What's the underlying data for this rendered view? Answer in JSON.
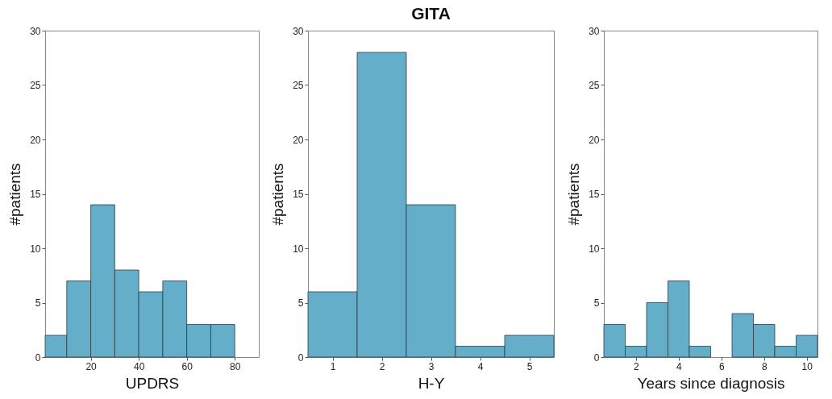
{
  "chart_data": [
    {
      "type": "histogram",
      "xlabel": "UPDRS",
      "ylabel": "#patients",
      "color": "#64aec9",
      "bins": [
        1,
        10,
        20,
        30,
        40,
        50,
        60,
        70,
        80
      ],
      "values": [
        2,
        7,
        14,
        8,
        6,
        7,
        3,
        3
      ],
      "xlim": [
        1,
        90
      ],
      "xticks": [
        20,
        40,
        60,
        80
      ],
      "ylim": [
        0,
        30
      ],
      "yticks": [
        0,
        5,
        10,
        15,
        20,
        25,
        30
      ]
    },
    {
      "type": "histogram",
      "title": "GITA",
      "xlabel": "H-Y",
      "ylabel": "#patients",
      "color": "#64aec9",
      "bins": [
        0.5,
        1.5,
        2.5,
        3.5,
        4.5,
        5.5
      ],
      "values": [
        6,
        28,
        14,
        1,
        2
      ],
      "xlim": [
        0.5,
        5.5
      ],
      "xticks": [
        1,
        2,
        3,
        4,
        5
      ],
      "ylim": [
        0,
        30
      ],
      "yticks": [
        0,
        5,
        10,
        15,
        20,
        25,
        30
      ]
    },
    {
      "type": "histogram",
      "xlabel": "Years since diagnosis",
      "ylabel": "#patients",
      "color": "#64aec9",
      "bins": [
        0.5,
        1.5,
        2.5,
        3.5,
        4.5,
        5.5,
        6.5,
        7.5,
        8.5,
        9.5,
        10.5
      ],
      "values": [
        3,
        1,
        5,
        7,
        1,
        0,
        4,
        3,
        1,
        2
      ],
      "xlim": [
        0.5,
        10.5
      ],
      "xticks": [
        2,
        4,
        6,
        8,
        10
      ],
      "ylim": [
        0,
        30
      ],
      "yticks": [
        0,
        5,
        10,
        15,
        20,
        25,
        30
      ]
    }
  ]
}
